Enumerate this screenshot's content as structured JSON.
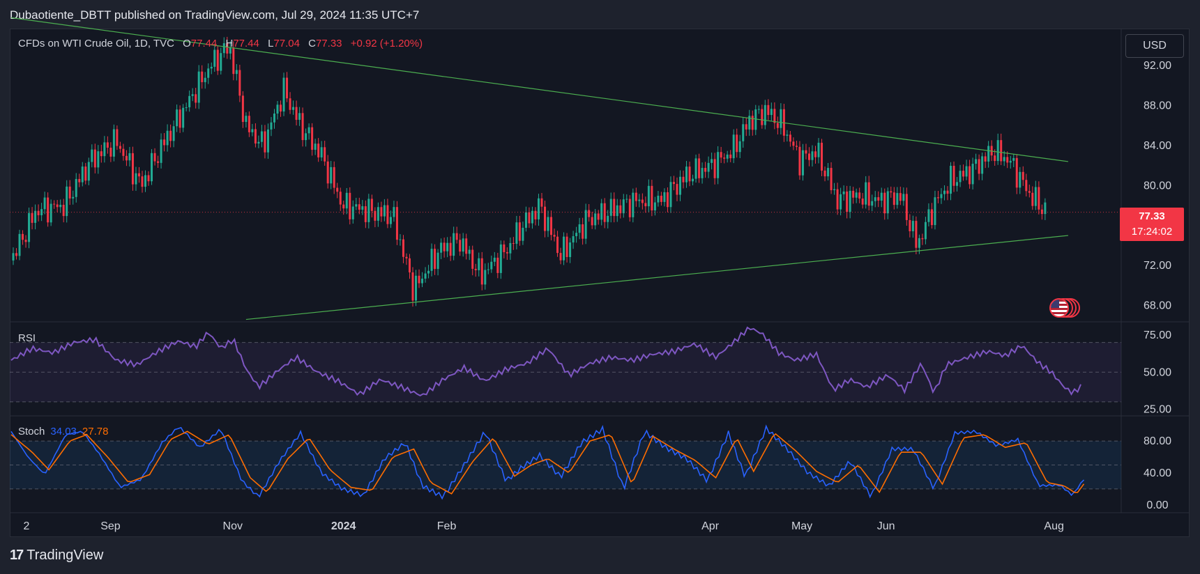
{
  "publisher": "Dubaotiente_DBTT published on TradingView.com, Jul 29, 2024 11:35 UTC+7",
  "symbol": "CFDs on WTI Crude Oil, 1D, TVC",
  "ohlc": {
    "o_label": "O",
    "o": "77.44",
    "h_label": "H",
    "h": "77.44",
    "l_label": "L",
    "l": "77.04",
    "c_label": "C",
    "c": "77.33",
    "change": "+0.92 (+1.20%)"
  },
  "currency": "USD",
  "last_price": "77.33",
  "countdown": "17:24:02",
  "rsi_label": "RSI",
  "stoch_label": "Stoch",
  "stoch_k_value": "34.03",
  "stoch_d_value": "27.78",
  "footer_brand": "TradingView",
  "colors": {
    "up": "#22ab94",
    "down": "#f23645",
    "trendline": "#4caf50",
    "rsi": "#7e57c2",
    "stoch_k": "#2962ff",
    "stoch_d": "#ff6d00",
    "last_price": "#f23645"
  },
  "icons": [
    "us-flag-event-icon",
    "tradingview-logo-icon"
  ],
  "chart_data": [
    {
      "type": "candlestick",
      "title": "CFDs on WTI Crude Oil, 1D, TVC",
      "x_ticks": [
        "2",
        "Sep",
        "Nov",
        "2024",
        "Feb",
        "Apr",
        "May",
        "Jun",
        "Aug"
      ],
      "y_ticks": [
        "92.00",
        "88.00",
        "84.00",
        "80.00",
        "72.00",
        "68.00"
      ],
      "ylim": [
        66.5,
        95.5
      ],
      "last_price": 77.33,
      "close_path": [
        {
          "t": 0,
          "p": 72.5
        },
        {
          "t": 12,
          "p": 77.5
        },
        {
          "t": 25,
          "p": 78.0
        },
        {
          "t": 38,
          "p": 82.5
        },
        {
          "t": 50,
          "p": 84.5
        },
        {
          "t": 62,
          "p": 80.0
        },
        {
          "t": 72,
          "p": 84.0
        },
        {
          "t": 85,
          "p": 88.5
        },
        {
          "t": 95,
          "p": 92.0
        },
        {
          "t": 104,
          "p": 94.0
        },
        {
          "t": 112,
          "p": 86.0
        },
        {
          "t": 120,
          "p": 84.0
        },
        {
          "t": 130,
          "p": 89.5
        },
        {
          "t": 138,
          "p": 86.0
        },
        {
          "t": 148,
          "p": 83.0
        },
        {
          "t": 158,
          "p": 78.0
        },
        {
          "t": 170,
          "p": 77.5
        },
        {
          "t": 182,
          "p": 77.0
        },
        {
          "t": 192,
          "p": 69.5
        },
        {
          "t": 204,
          "p": 73.5
        },
        {
          "t": 214,
          "p": 74.5
        },
        {
          "t": 224,
          "p": 71.0
        },
        {
          "t": 236,
          "p": 73.5
        },
        {
          "t": 244,
          "p": 76.0
        },
        {
          "t": 252,
          "p": 78.0
        },
        {
          "t": 262,
          "p": 73.0
        },
        {
          "t": 274,
          "p": 76.5
        },
        {
          "t": 286,
          "p": 77.5
        },
        {
          "t": 298,
          "p": 78.5
        },
        {
          "t": 310,
          "p": 78.5
        },
        {
          "t": 322,
          "p": 81.0
        },
        {
          "t": 334,
          "p": 82.0
        },
        {
          "t": 344,
          "p": 83.5
        },
        {
          "t": 352,
          "p": 86.5
        },
        {
          "t": 360,
          "p": 87.5
        },
        {
          "t": 368,
          "p": 86.0
        },
        {
          "t": 376,
          "p": 82.5
        },
        {
          "t": 384,
          "p": 83.5
        },
        {
          "t": 394,
          "p": 78.5
        },
        {
          "t": 404,
          "p": 79.0
        },
        {
          "t": 414,
          "p": 78.5
        },
        {
          "t": 424,
          "p": 79.0
        },
        {
          "t": 432,
          "p": 74.0
        },
        {
          "t": 440,
          "p": 78.0
        },
        {
          "t": 448,
          "p": 80.5
        },
        {
          "t": 458,
          "p": 81.5
        },
        {
          "t": 468,
          "p": 83.5
        },
        {
          "t": 476,
          "p": 82.5
        },
        {
          "t": 486,
          "p": 79.0
        },
        {
          "t": 494,
          "p": 77.3
        }
      ],
      "trendlines": [
        {
          "name": "upper",
          "from": [
            0,
            96.8
          ],
          "to": [
            504,
            82.4
          ]
        },
        {
          "name": "lower",
          "from": [
            112,
            66.6
          ],
          "to": [
            504,
            75.0
          ]
        }
      ]
    },
    {
      "type": "line",
      "name": "RSI",
      "y_ticks": [
        "75.00",
        "50.00",
        "25.00"
      ],
      "bands": [
        70,
        50,
        30
      ],
      "ylim": [
        22,
        82
      ],
      "path": [
        {
          "t": 0,
          "v": 58
        },
        {
          "t": 10,
          "v": 66
        },
        {
          "t": 20,
          "v": 63
        },
        {
          "t": 30,
          "v": 70
        },
        {
          "t": 40,
          "v": 72
        },
        {
          "t": 50,
          "v": 58
        },
        {
          "t": 60,
          "v": 55
        },
        {
          "t": 70,
          "v": 64
        },
        {
          "t": 80,
          "v": 71
        },
        {
          "t": 88,
          "v": 67
        },
        {
          "t": 94,
          "v": 77
        },
        {
          "t": 100,
          "v": 66
        },
        {
          "t": 106,
          "v": 72
        },
        {
          "t": 112,
          "v": 52
        },
        {
          "t": 118,
          "v": 40
        },
        {
          "t": 128,
          "v": 52
        },
        {
          "t": 136,
          "v": 60
        },
        {
          "t": 146,
          "v": 50
        },
        {
          "t": 156,
          "v": 44
        },
        {
          "t": 166,
          "v": 35
        },
        {
          "t": 176,
          "v": 45
        },
        {
          "t": 186,
          "v": 40
        },
        {
          "t": 196,
          "v": 34
        },
        {
          "t": 206,
          "v": 45
        },
        {
          "t": 216,
          "v": 53
        },
        {
          "t": 226,
          "v": 44
        },
        {
          "t": 236,
          "v": 52
        },
        {
          "t": 246,
          "v": 56
        },
        {
          "t": 256,
          "v": 66
        },
        {
          "t": 266,
          "v": 48
        },
        {
          "t": 276,
          "v": 56
        },
        {
          "t": 286,
          "v": 60
        },
        {
          "t": 296,
          "v": 58
        },
        {
          "t": 306,
          "v": 62
        },
        {
          "t": 316,
          "v": 64
        },
        {
          "t": 326,
          "v": 69
        },
        {
          "t": 336,
          "v": 60
        },
        {
          "t": 346,
          "v": 72
        },
        {
          "t": 352,
          "v": 80
        },
        {
          "t": 358,
          "v": 76
        },
        {
          "t": 366,
          "v": 63
        },
        {
          "t": 374,
          "v": 58
        },
        {
          "t": 384,
          "v": 62
        },
        {
          "t": 392,
          "v": 38
        },
        {
          "t": 400,
          "v": 45
        },
        {
          "t": 408,
          "v": 40
        },
        {
          "t": 418,
          "v": 48
        },
        {
          "t": 426,
          "v": 38
        },
        {
          "t": 434,
          "v": 56
        },
        {
          "t": 440,
          "v": 36
        },
        {
          "t": 446,
          "v": 55
        },
        {
          "t": 456,
          "v": 60
        },
        {
          "t": 466,
          "v": 64
        },
        {
          "t": 474,
          "v": 61
        },
        {
          "t": 482,
          "v": 68
        },
        {
          "t": 490,
          "v": 56
        },
        {
          "t": 496,
          "v": 50
        },
        {
          "t": 502,
          "v": 40
        },
        {
          "t": 506,
          "v": 36
        },
        {
          "t": 510,
          "v": 40
        }
      ]
    },
    {
      "type": "line",
      "name": "Stoch",
      "y_ticks": [
        "80.00",
        "40.00",
        "0.00"
      ],
      "bands": [
        80,
        50,
        20
      ],
      "ylim": [
        -8,
        108
      ],
      "series": [
        {
          "name": "34.03",
          "values_note": "%K",
          "path": [
            {
              "t": 0,
              "v": 92
            },
            {
              "t": 8,
              "v": 60
            },
            {
              "t": 16,
              "v": 38
            },
            {
              "t": 26,
              "v": 88
            },
            {
              "t": 34,
              "v": 92
            },
            {
              "t": 42,
              "v": 64
            },
            {
              "t": 52,
              "v": 22
            },
            {
              "t": 62,
              "v": 32
            },
            {
              "t": 72,
              "v": 78
            },
            {
              "t": 80,
              "v": 98
            },
            {
              "t": 90,
              "v": 72
            },
            {
              "t": 100,
              "v": 95
            },
            {
              "t": 110,
              "v": 30
            },
            {
              "t": 118,
              "v": 10
            },
            {
              "t": 128,
              "v": 55
            },
            {
              "t": 138,
              "v": 90
            },
            {
              "t": 148,
              "v": 40
            },
            {
              "t": 158,
              "v": 20
            },
            {
              "t": 168,
              "v": 12
            },
            {
              "t": 178,
              "v": 58
            },
            {
              "t": 188,
              "v": 78
            },
            {
              "t": 196,
              "v": 24
            },
            {
              "t": 206,
              "v": 10
            },
            {
              "t": 216,
              "v": 50
            },
            {
              "t": 226,
              "v": 92
            },
            {
              "t": 236,
              "v": 30
            },
            {
              "t": 244,
              "v": 48
            },
            {
              "t": 252,
              "v": 62
            },
            {
              "t": 262,
              "v": 35
            },
            {
              "t": 272,
              "v": 78
            },
            {
              "t": 282,
              "v": 95
            },
            {
              "t": 292,
              "v": 20
            },
            {
              "t": 302,
              "v": 92
            },
            {
              "t": 312,
              "v": 72
            },
            {
              "t": 322,
              "v": 58
            },
            {
              "t": 332,
              "v": 30
            },
            {
              "t": 342,
              "v": 90
            },
            {
              "t": 350,
              "v": 35
            },
            {
              "t": 360,
              "v": 96
            },
            {
              "t": 370,
              "v": 70
            },
            {
              "t": 380,
              "v": 40
            },
            {
              "t": 390,
              "v": 24
            },
            {
              "t": 400,
              "v": 55
            },
            {
              "t": 410,
              "v": 10
            },
            {
              "t": 420,
              "v": 70
            },
            {
              "t": 430,
              "v": 70
            },
            {
              "t": 440,
              "v": 20
            },
            {
              "t": 450,
              "v": 90
            },
            {
              "t": 460,
              "v": 92
            },
            {
              "t": 470,
              "v": 74
            },
            {
              "t": 480,
              "v": 82
            },
            {
              "t": 490,
              "v": 24
            },
            {
              "t": 500,
              "v": 25
            },
            {
              "t": 506,
              "v": 12
            },
            {
              "t": 512,
              "v": 34
            }
          ]
        },
        {
          "name": "27.78",
          "values_note": "%D",
          "path": [
            {
              "t": 0,
              "v": 88
            },
            {
              "t": 10,
              "v": 66
            },
            {
              "t": 18,
              "v": 44
            },
            {
              "t": 28,
              "v": 80
            },
            {
              "t": 36,
              "v": 88
            },
            {
              "t": 46,
              "v": 60
            },
            {
              "t": 56,
              "v": 28
            },
            {
              "t": 66,
              "v": 38
            },
            {
              "t": 76,
              "v": 82
            },
            {
              "t": 84,
              "v": 92
            },
            {
              "t": 94,
              "v": 76
            },
            {
              "t": 104,
              "v": 88
            },
            {
              "t": 114,
              "v": 34
            },
            {
              "t": 122,
              "v": 16
            },
            {
              "t": 132,
              "v": 58
            },
            {
              "t": 142,
              "v": 84
            },
            {
              "t": 152,
              "v": 44
            },
            {
              "t": 162,
              "v": 22
            },
            {
              "t": 172,
              "v": 18
            },
            {
              "t": 182,
              "v": 60
            },
            {
              "t": 192,
              "v": 70
            },
            {
              "t": 200,
              "v": 28
            },
            {
              "t": 210,
              "v": 14
            },
            {
              "t": 220,
              "v": 54
            },
            {
              "t": 230,
              "v": 84
            },
            {
              "t": 240,
              "v": 36
            },
            {
              "t": 248,
              "v": 50
            },
            {
              "t": 256,
              "v": 58
            },
            {
              "t": 266,
              "v": 40
            },
            {
              "t": 276,
              "v": 80
            },
            {
              "t": 286,
              "v": 88
            },
            {
              "t": 296,
              "v": 26
            },
            {
              "t": 306,
              "v": 86
            },
            {
              "t": 316,
              "v": 70
            },
            {
              "t": 326,
              "v": 56
            },
            {
              "t": 336,
              "v": 34
            },
            {
              "t": 346,
              "v": 84
            },
            {
              "t": 354,
              "v": 42
            },
            {
              "t": 364,
              "v": 90
            },
            {
              "t": 374,
              "v": 68
            },
            {
              "t": 384,
              "v": 42
            },
            {
              "t": 394,
              "v": 28
            },
            {
              "t": 404,
              "v": 50
            },
            {
              "t": 414,
              "v": 16
            },
            {
              "t": 424,
              "v": 66
            },
            {
              "t": 434,
              "v": 66
            },
            {
              "t": 444,
              "v": 26
            },
            {
              "t": 454,
              "v": 84
            },
            {
              "t": 464,
              "v": 88
            },
            {
              "t": 474,
              "v": 72
            },
            {
              "t": 484,
              "v": 78
            },
            {
              "t": 494,
              "v": 28
            },
            {
              "t": 502,
              "v": 24
            },
            {
              "t": 508,
              "v": 14
            },
            {
              "t": 512,
              "v": 28
            }
          ]
        }
      ]
    }
  ]
}
